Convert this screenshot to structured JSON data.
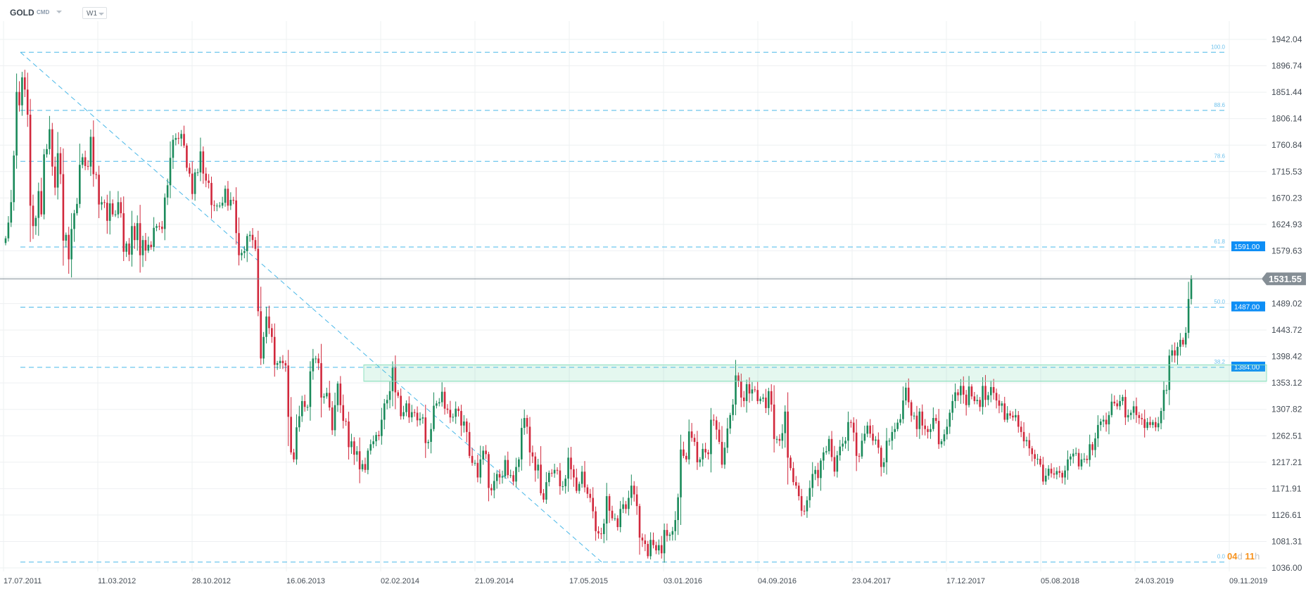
{
  "header": {
    "symbol": "GOLD",
    "market": "CMD",
    "timeframe": "W1"
  },
  "countdown": {
    "days": "04",
    "days_unit": "d",
    "hours": "11",
    "hours_unit": "h"
  },
  "colors": {
    "up": "#1a8a5a",
    "down": "#d1283c",
    "fib": "#4ab8e8",
    "zone": "#8fe0c0",
    "badge": "#0e8ef5",
    "price_badge": "#858e95",
    "countdown": "#f7931e"
  },
  "chart_data": {
    "type": "candlestick",
    "timeframe": "weekly",
    "ylim": [
      1036.0,
      1942.04
    ],
    "y_ticks": [
      "1942.04",
      "1896.74",
      "1851.44",
      "1806.14",
      "1760.84",
      "1715.53",
      "1670.23",
      "1624.93",
      "1579.63",
      "1489.02",
      "1443.72",
      "1398.42",
      "1353.12",
      "1307.82",
      "1262.51",
      "1217.21",
      "1171.91",
      "1126.61",
      "1081.31",
      "1036.00"
    ],
    "x_ticks": [
      "17.07.2011",
      "11.03.2012",
      "28.10.2012",
      "16.06.2013",
      "02.02.2014",
      "21.09.2014",
      "17.05.2015",
      "03.01.2016",
      "04.09.2016",
      "23.04.2017",
      "17.12.2017",
      "05.08.2018",
      "24.03.2019",
      "09.11.2019"
    ],
    "grid": true,
    "current_price": "1531.55",
    "closes": [
      1601,
      1628,
      1663,
      1743,
      1852,
      1829,
      1877,
      1856,
      1813,
      1657,
      1622,
      1636,
      1682,
      1642,
      1745,
      1754,
      1788,
      1724,
      1688,
      1747,
      1711,
      1597,
      1607,
      1565,
      1617,
      1644,
      1660,
      1727,
      1740,
      1725,
      1724,
      1775,
      1711,
      1710,
      1659,
      1663,
      1662,
      1631,
      1661,
      1642,
      1642,
      1663,
      1644,
      1578,
      1592,
      1573,
      1622,
      1598,
      1627,
      1572,
      1598,
      1580,
      1590,
      1586,
      1619,
      1622,
      1621,
      1617,
      1671,
      1692,
      1739,
      1770,
      1773,
      1772,
      1780,
      1760,
      1722,
      1712,
      1677,
      1714,
      1714,
      1750,
      1712,
      1700,
      1696,
      1658,
      1657,
      1657,
      1657,
      1662,
      1686,
      1657,
      1667,
      1666,
      1610,
      1572,
      1576,
      1579,
      1605,
      1607,
      1598,
      1583,
      1476,
      1395,
      1432,
      1467,
      1447,
      1432,
      1384,
      1387,
      1391,
      1387,
      1383,
      1295,
      1234,
      1222,
      1277,
      1296,
      1322,
      1312,
      1312,
      1373,
      1395,
      1395,
      1387,
      1328,
      1330,
      1336,
      1311,
      1272,
      1315,
      1352,
      1315,
      1288,
      1287,
      1243,
      1253,
      1230,
      1236,
      1205,
      1214,
      1204,
      1237,
      1248,
      1253,
      1264,
      1262,
      1290,
      1318,
      1324,
      1339,
      1379,
      1337,
      1331,
      1296,
      1303,
      1318,
      1294,
      1303,
      1302,
      1289,
      1292,
      1294,
      1250,
      1252,
      1274,
      1314,
      1318,
      1320,
      1338,
      1309,
      1307,
      1294,
      1295,
      1309,
      1305,
      1280,
      1287,
      1269,
      1228,
      1216,
      1216,
      1191,
      1222,
      1237,
      1231,
      1173,
      1169,
      1185,
      1197,
      1191,
      1193,
      1221,
      1195,
      1195,
      1184,
      1209,
      1222,
      1276,
      1293,
      1278,
      1234,
      1227,
      1203,
      1213,
      1164,
      1153,
      1183,
      1199,
      1198,
      1204,
      1203,
      1176,
      1176,
      1189,
      1225,
      1205,
      1191,
      1168,
      1180,
      1201,
      1174,
      1163,
      1156,
      1133,
      1099,
      1095,
      1094,
      1112,
      1159,
      1134,
      1121,
      1121,
      1106,
      1137,
      1145,
      1137,
      1156,
      1177,
      1162,
      1142,
      1088,
      1083,
      1077,
      1056,
      1084,
      1075,
      1066,
      1075,
      1061,
      1101,
      1091,
      1093,
      1099,
      1118,
      1157,
      1239,
      1228,
      1222,
      1270,
      1259,
      1252,
      1217,
      1222,
      1240,
      1234,
      1231,
      1290,
      1289,
      1273,
      1252,
      1213,
      1242,
      1275,
      1298,
      1316,
      1366,
      1356,
      1328,
      1322,
      1351,
      1335,
      1342,
      1341,
      1322,
      1326,
      1328,
      1310,
      1339,
      1316,
      1257,
      1257,
      1254,
      1267,
      1304,
      1225,
      1207,
      1183,
      1177,
      1159,
      1134,
      1133,
      1152,
      1173,
      1197,
      1204,
      1190,
      1220,
      1234,
      1236,
      1257,
      1226,
      1201,
      1229,
      1244,
      1249,
      1254,
      1286,
      1285,
      1268,
      1228,
      1227,
      1254,
      1266,
      1280,
      1266,
      1254,
      1256,
      1242,
      1209,
      1217,
      1254,
      1254,
      1269,
      1274,
      1285,
      1291,
      1323,
      1345,
      1320,
      1297,
      1297,
      1274,
      1304,
      1280,
      1274,
      1269,
      1274,
      1293,
      1288,
      1248,
      1253,
      1265,
      1278,
      1302,
      1322,
      1337,
      1332,
      1348,
      1333,
      1315,
      1347,
      1330,
      1322,
      1324,
      1312,
      1348,
      1324,
      1332,
      1346,
      1336,
      1323,
      1314,
      1318,
      1290,
      1301,
      1297,
      1294,
      1298,
      1278,
      1269,
      1253,
      1255,
      1241,
      1231,
      1223,
      1223,
      1213,
      1184,
      1194,
      1206,
      1198,
      1196,
      1202,
      1199,
      1191,
      1203,
      1222,
      1227,
      1232,
      1233,
      1210,
      1222,
      1223,
      1221,
      1248,
      1238,
      1258,
      1281,
      1287,
      1290,
      1282,
      1298,
      1321,
      1318,
      1313,
      1322,
      1329,
      1294,
      1298,
      1302,
      1313,
      1298,
      1293,
      1291,
      1276,
      1286,
      1281,
      1286,
      1277,
      1284,
      1305,
      1341,
      1341,
      1400,
      1409,
      1400,
      1415,
      1427,
      1419,
      1439,
      1497,
      1531.55
    ],
    "fibonacci": {
      "high": 1920,
      "low": 1046,
      "levels": [
        {
          "label": "100.0",
          "price": 1920
        },
        {
          "label": "88.6",
          "price": 1820.4
        },
        {
          "label": "78.6",
          "price": 1733.0
        },
        {
          "label": "61.8",
          "price": 1586.1,
          "badge": "1591.00"
        },
        {
          "label": "50.0",
          "price": 1483.0,
          "badge": "1487.00"
        },
        {
          "label": "38.2",
          "price": 1379.9,
          "badge": "1384.00"
        },
        {
          "label": "0.0",
          "price": 1046
        }
      ]
    },
    "zone": {
      "top": 1384,
      "bottom": 1356
    }
  }
}
